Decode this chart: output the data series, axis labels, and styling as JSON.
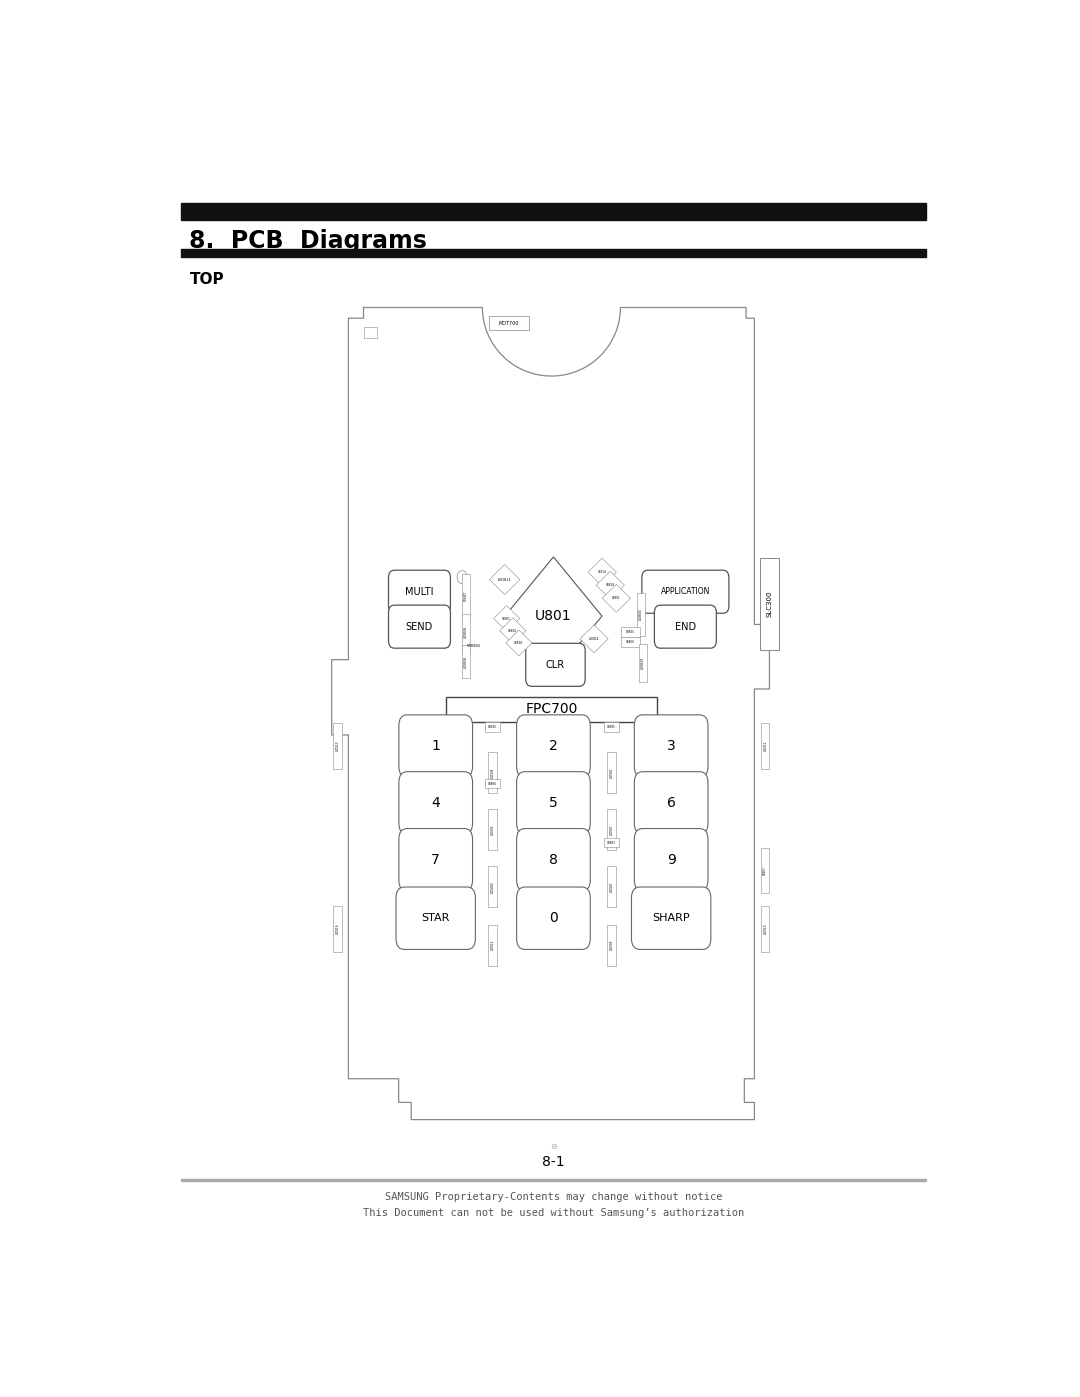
{
  "title": "8.  PCB  Diagrams",
  "subtitle": "TOP",
  "page_number": "8-1",
  "footer_line1": "SAMSUNG Proprietary-Contents may change without notice",
  "footer_line2": "This Document can not be used without Samsung’s authorization",
  "bg_color": "#ffffff",
  "text_color": "#000000",
  "line_color": "#888888",
  "header_bar_color": "#111111",
  "bx": 0.255,
  "bxr": 0.74,
  "byt": 0.87,
  "byb": 0.115
}
